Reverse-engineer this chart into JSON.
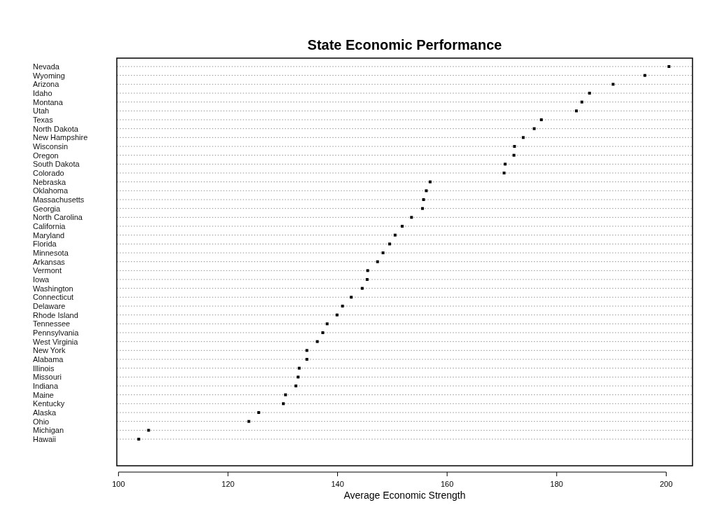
{
  "chart_data": {
    "type": "scatter",
    "title": "State Economic Performance",
    "xlabel": "Average Economic Strength",
    "orientation": "horizontal",
    "categories": [
      "Nevada",
      "Wyoming",
      "Arizona",
      "Idaho",
      "Montana",
      "Utah",
      "Texas",
      "North Dakota",
      "New Hampshire",
      "Wisconsin",
      "Oregon",
      "South Dakota",
      "Colorado",
      "Nebraska",
      "Oklahoma",
      "Massachusetts",
      "Georgia",
      "North Carolina",
      "California",
      "Maryland",
      "Florida",
      "Minnesota",
      "Arkansas",
      "Vermont",
      "Iowa",
      "Washington",
      "Connecticut",
      "Delaware",
      "Rhode Island",
      "Tennessee",
      "Pennsylvania",
      "West Virginia",
      "New York",
      "Alabama",
      "Illinois",
      "Missouri",
      "Indiana",
      "Maine",
      "Kentucky",
      "Alaska",
      "Ohio",
      "Michigan",
      "Hawaii"
    ],
    "values": [
      200.5,
      196.1,
      190.3,
      186.0,
      184.6,
      183.6,
      177.2,
      175.9,
      173.9,
      172.3,
      172.2,
      170.6,
      170.4,
      156.9,
      156.2,
      155.7,
      155.5,
      153.5,
      151.8,
      150.5,
      149.5,
      148.3,
      147.3,
      145.5,
      145.4,
      144.5,
      142.5,
      140.9,
      139.9,
      138.1,
      137.3,
      136.3,
      134.4,
      134.4,
      133.0,
      132.8,
      132.4,
      130.5,
      130.1,
      125.6,
      123.8,
      105.5,
      103.7
    ],
    "color": "#000000",
    "marker": "square",
    "grid": "y",
    "xlim": [
      99.7,
      204.8
    ],
    "xticks": [
      100,
      120,
      140,
      160,
      180,
      200
    ]
  }
}
